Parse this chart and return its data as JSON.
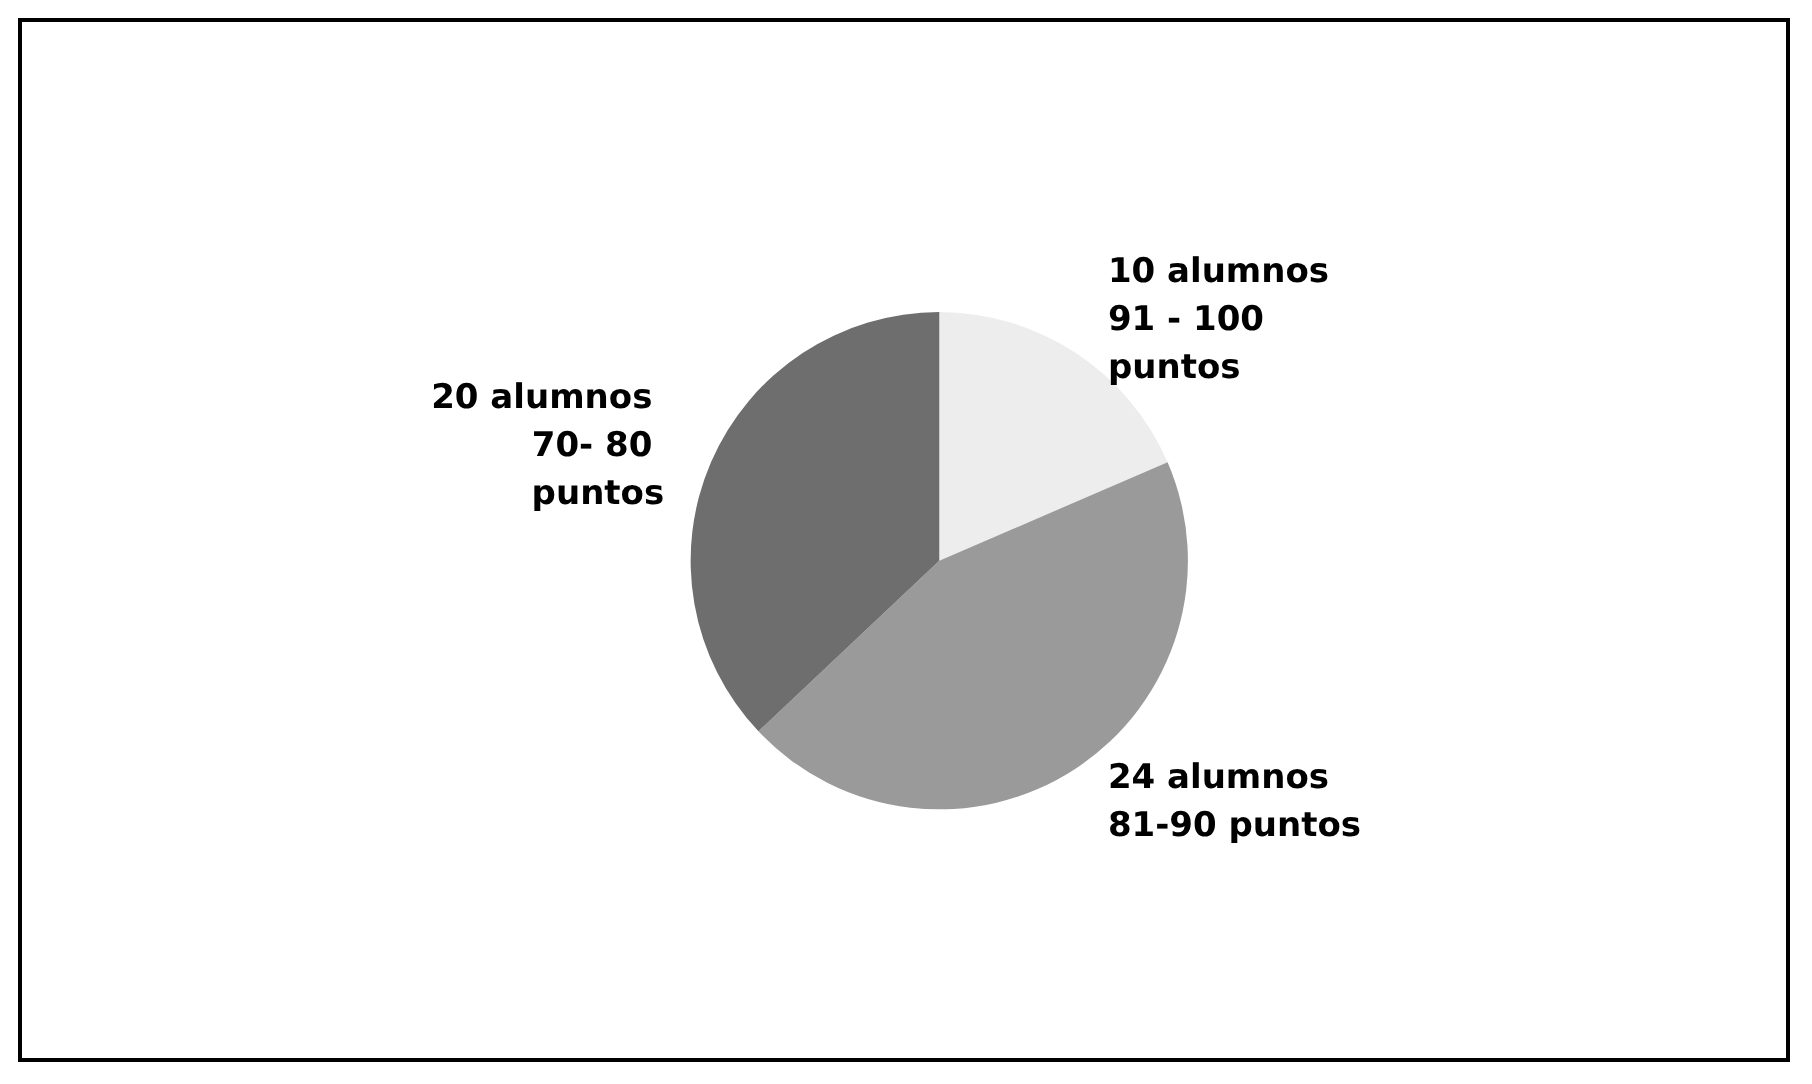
{
  "chart_data": {
    "type": "pie",
    "categories": [
      "10 alumnos 91 - 100 puntos",
      "24 alumnos 81-90 puntos",
      "20 alumnos 70- 80 puntos"
    ],
    "values": [
      10,
      24,
      20
    ],
    "colors": [
      "#ededed",
      "#9a9a9a",
      "#6e6e6e"
    ]
  }
}
